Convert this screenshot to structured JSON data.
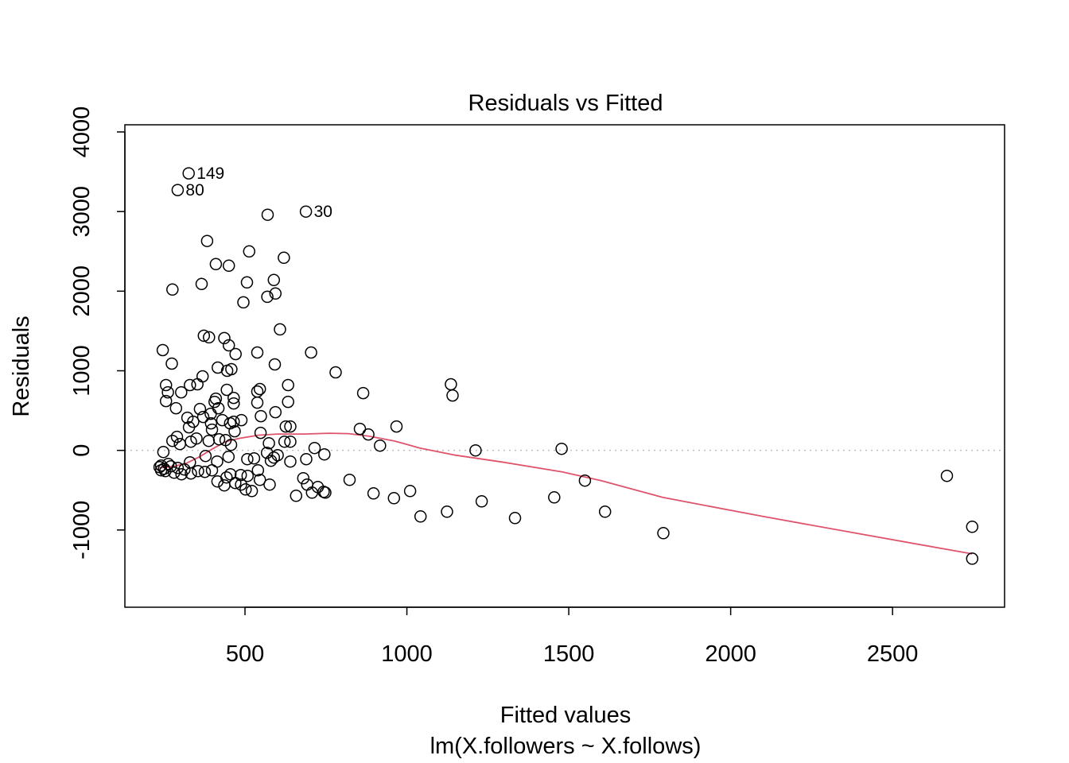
{
  "chart_data": {
    "type": "scatter",
    "title": "Residuals vs Fitted",
    "xlabel": "Fitted values",
    "subtitle": "lm(X.followers ~ X.follows)",
    "ylabel": "Residuals",
    "xlim": [
      129,
      2846
    ],
    "ylim": [
      -1970,
      4090
    ],
    "xticks": [
      500,
      1000,
      1500,
      2000,
      2500
    ],
    "xtick_labels": [
      "500",
      "1000",
      "1500",
      "2000",
      "2500"
    ],
    "yticks": [
      -1000,
      0,
      1000,
      2000,
      3000,
      4000
    ],
    "ytick_labels": [
      "-1000",
      "0",
      "1000",
      "2000",
      "3000",
      "4000"
    ],
    "reference_line": {
      "y": 0,
      "style": "dotted",
      "color": "#bebebe"
    },
    "colors": {
      "points": "#000000",
      "smoother": "#df536b",
      "frame": "#000000"
    },
    "labeled_points": [
      {
        "label": "149",
        "x": 326,
        "y": 3480
      },
      {
        "label": "80",
        "x": 292,
        "y": 3270
      },
      {
        "label": "30",
        "x": 688,
        "y": 3000
      }
    ],
    "points": [
      {
        "x": 326,
        "y": 3480
      },
      {
        "x": 292,
        "y": 3270
      },
      {
        "x": 688,
        "y": 3000
      },
      {
        "x": 570,
        "y": 2960
      },
      {
        "x": 383,
        "y": 2630
      },
      {
        "x": 513,
        "y": 2500
      },
      {
        "x": 620,
        "y": 2420
      },
      {
        "x": 410,
        "y": 2340
      },
      {
        "x": 450,
        "y": 2320
      },
      {
        "x": 589,
        "y": 2140
      },
      {
        "x": 506,
        "y": 2110
      },
      {
        "x": 366,
        "y": 2090
      },
      {
        "x": 276,
        "y": 2020
      },
      {
        "x": 594,
        "y": 1970
      },
      {
        "x": 569,
        "y": 1930
      },
      {
        "x": 495,
        "y": 1860
      },
      {
        "x": 608,
        "y": 1520
      },
      {
        "x": 373,
        "y": 1440
      },
      {
        "x": 389,
        "y": 1420
      },
      {
        "x": 436,
        "y": 1410
      },
      {
        "x": 450,
        "y": 1320
      },
      {
        "x": 246,
        "y": 1260
      },
      {
        "x": 538,
        "y": 1230
      },
      {
        "x": 704,
        "y": 1230
      },
      {
        "x": 471,
        "y": 1210
      },
      {
        "x": 274,
        "y": 1090
      },
      {
        "x": 592,
        "y": 1080
      },
      {
        "x": 416,
        "y": 1040
      },
      {
        "x": 458,
        "y": 1020
      },
      {
        "x": 445,
        "y": 1000
      },
      {
        "x": 780,
        "y": 980
      },
      {
        "x": 369,
        "y": 930
      },
      {
        "x": 1136,
        "y": 830
      },
      {
        "x": 256,
        "y": 820
      },
      {
        "x": 330,
        "y": 820
      },
      {
        "x": 633,
        "y": 820
      },
      {
        "x": 353,
        "y": 830
      },
      {
        "x": 546,
        "y": 770
      },
      {
        "x": 444,
        "y": 760
      },
      {
        "x": 262,
        "y": 730
      },
      {
        "x": 303,
        "y": 730
      },
      {
        "x": 538,
        "y": 740
      },
      {
        "x": 865,
        "y": 720
      },
      {
        "x": 1141,
        "y": 690
      },
      {
        "x": 410,
        "y": 650
      },
      {
        "x": 465,
        "y": 660
      },
      {
        "x": 406,
        "y": 610
      },
      {
        "x": 256,
        "y": 620
      },
      {
        "x": 633,
        "y": 610
      },
      {
        "x": 465,
        "y": 590
      },
      {
        "x": 538,
        "y": 600
      },
      {
        "x": 287,
        "y": 530
      },
      {
        "x": 361,
        "y": 520
      },
      {
        "x": 418,
        "y": 530
      },
      {
        "x": 594,
        "y": 480
      },
      {
        "x": 394,
        "y": 460
      },
      {
        "x": 549,
        "y": 430
      },
      {
        "x": 322,
        "y": 410
      },
      {
        "x": 371,
        "y": 420
      },
      {
        "x": 430,
        "y": 380
      },
      {
        "x": 465,
        "y": 360
      },
      {
        "x": 489,
        "y": 380
      },
      {
        "x": 340,
        "y": 360
      },
      {
        "x": 395,
        "y": 340
      },
      {
        "x": 454,
        "y": 340
      },
      {
        "x": 626,
        "y": 300
      },
      {
        "x": 640,
        "y": 300
      },
      {
        "x": 968,
        "y": 300
      },
      {
        "x": 327,
        "y": 290
      },
      {
        "x": 398,
        "y": 260
      },
      {
        "x": 855,
        "y": 270
      },
      {
        "x": 468,
        "y": 240
      },
      {
        "x": 548,
        "y": 220
      },
      {
        "x": 881,
        "y": 200
      },
      {
        "x": 290,
        "y": 170
      },
      {
        "x": 350,
        "y": 150
      },
      {
        "x": 420,
        "y": 140
      },
      {
        "x": 440,
        "y": 130
      },
      {
        "x": 388,
        "y": 120
      },
      {
        "x": 276,
        "y": 120
      },
      {
        "x": 333,
        "y": 110
      },
      {
        "x": 622,
        "y": 110
      },
      {
        "x": 640,
        "y": 110
      },
      {
        "x": 299,
        "y": 80
      },
      {
        "x": 574,
        "y": 90
      },
      {
        "x": 457,
        "y": 70
      },
      {
        "x": 917,
        "y": 60
      },
      {
        "x": 715,
        "y": 30
      },
      {
        "x": 1478,
        "y": 20
      },
      {
        "x": 1212,
        "y": 0
      },
      {
        "x": 248,
        "y": -20
      },
      {
        "x": 568,
        "y": -30
      },
      {
        "x": 601,
        "y": -60
      },
      {
        "x": 745,
        "y": -50
      },
      {
        "x": 378,
        "y": -70
      },
      {
        "x": 449,
        "y": -80
      },
      {
        "x": 589,
        "y": -90
      },
      {
        "x": 528,
        "y": -100
      },
      {
        "x": 689,
        "y": -110
      },
      {
        "x": 507,
        "y": -110
      },
      {
        "x": 640,
        "y": -140
      },
      {
        "x": 414,
        "y": -140
      },
      {
        "x": 330,
        "y": -150
      },
      {
        "x": 580,
        "y": -130
      },
      {
        "x": 263,
        "y": -170
      },
      {
        "x": 241,
        "y": -190
      },
      {
        "x": 236,
        "y": -210
      },
      {
        "x": 250,
        "y": -230
      },
      {
        "x": 271,
        "y": -200
      },
      {
        "x": 292,
        "y": -220
      },
      {
        "x": 313,
        "y": -240
      },
      {
        "x": 254,
        "y": -260
      },
      {
        "x": 281,
        "y": -280
      },
      {
        "x": 304,
        "y": -300
      },
      {
        "x": 333,
        "y": -290
      },
      {
        "x": 241,
        "y": -250
      },
      {
        "x": 355,
        "y": -260
      },
      {
        "x": 376,
        "y": -270
      },
      {
        "x": 398,
        "y": -250
      },
      {
        "x": 540,
        "y": -250
      },
      {
        "x": 455,
        "y": -300
      },
      {
        "x": 487,
        "y": -310
      },
      {
        "x": 508,
        "y": -320
      },
      {
        "x": 680,
        "y": -350
      },
      {
        "x": 443,
        "y": -340
      },
      {
        "x": 546,
        "y": -370
      },
      {
        "x": 823,
        "y": -370
      },
      {
        "x": 1550,
        "y": -380
      },
      {
        "x": 2668,
        "y": -320
      },
      {
        "x": 415,
        "y": -390
      },
      {
        "x": 470,
        "y": -410
      },
      {
        "x": 576,
        "y": -430
      },
      {
        "x": 488,
        "y": -430
      },
      {
        "x": 692,
        "y": -430
      },
      {
        "x": 725,
        "y": -460
      },
      {
        "x": 436,
        "y": -440
      },
      {
        "x": 502,
        "y": -490
      },
      {
        "x": 521,
        "y": -510
      },
      {
        "x": 707,
        "y": -530
      },
      {
        "x": 743,
        "y": -520
      },
      {
        "x": 748,
        "y": -530
      },
      {
        "x": 1010,
        "y": -510
      },
      {
        "x": 897,
        "y": -540
      },
      {
        "x": 658,
        "y": -570
      },
      {
        "x": 960,
        "y": -600
      },
      {
        "x": 1455,
        "y": -590
      },
      {
        "x": 1231,
        "y": -640
      },
      {
        "x": 1124,
        "y": -770
      },
      {
        "x": 1612,
        "y": -770
      },
      {
        "x": 1042,
        "y": -830
      },
      {
        "x": 1334,
        "y": -850
      },
      {
        "x": 2746,
        "y": -960
      },
      {
        "x": 1792,
        "y": -1040
      },
      {
        "x": 2746,
        "y": -1360
      }
    ],
    "smoother": [
      {
        "x": 236,
        "y": -220
      },
      {
        "x": 280,
        "y": -200
      },
      {
        "x": 320,
        "y": -160
      },
      {
        "x": 360,
        "y": -80
      },
      {
        "x": 400,
        "y": 20
      },
      {
        "x": 440,
        "y": 110
      },
      {
        "x": 480,
        "y": 150
      },
      {
        "x": 540,
        "y": 190
      },
      {
        "x": 600,
        "y": 205
      },
      {
        "x": 680,
        "y": 205
      },
      {
        "x": 760,
        "y": 215
      },
      {
        "x": 820,
        "y": 210
      },
      {
        "x": 880,
        "y": 180
      },
      {
        "x": 960,
        "y": 120
      },
      {
        "x": 1040,
        "y": 30
      },
      {
        "x": 1150,
        "y": -60
      },
      {
        "x": 1300,
        "y": -150
      },
      {
        "x": 1480,
        "y": -270
      },
      {
        "x": 1600,
        "y": -380
      },
      {
        "x": 1790,
        "y": -590
      },
      {
        "x": 2100,
        "y": -830
      },
      {
        "x": 2400,
        "y": -1050
      },
      {
        "x": 2746,
        "y": -1300
      }
    ]
  }
}
